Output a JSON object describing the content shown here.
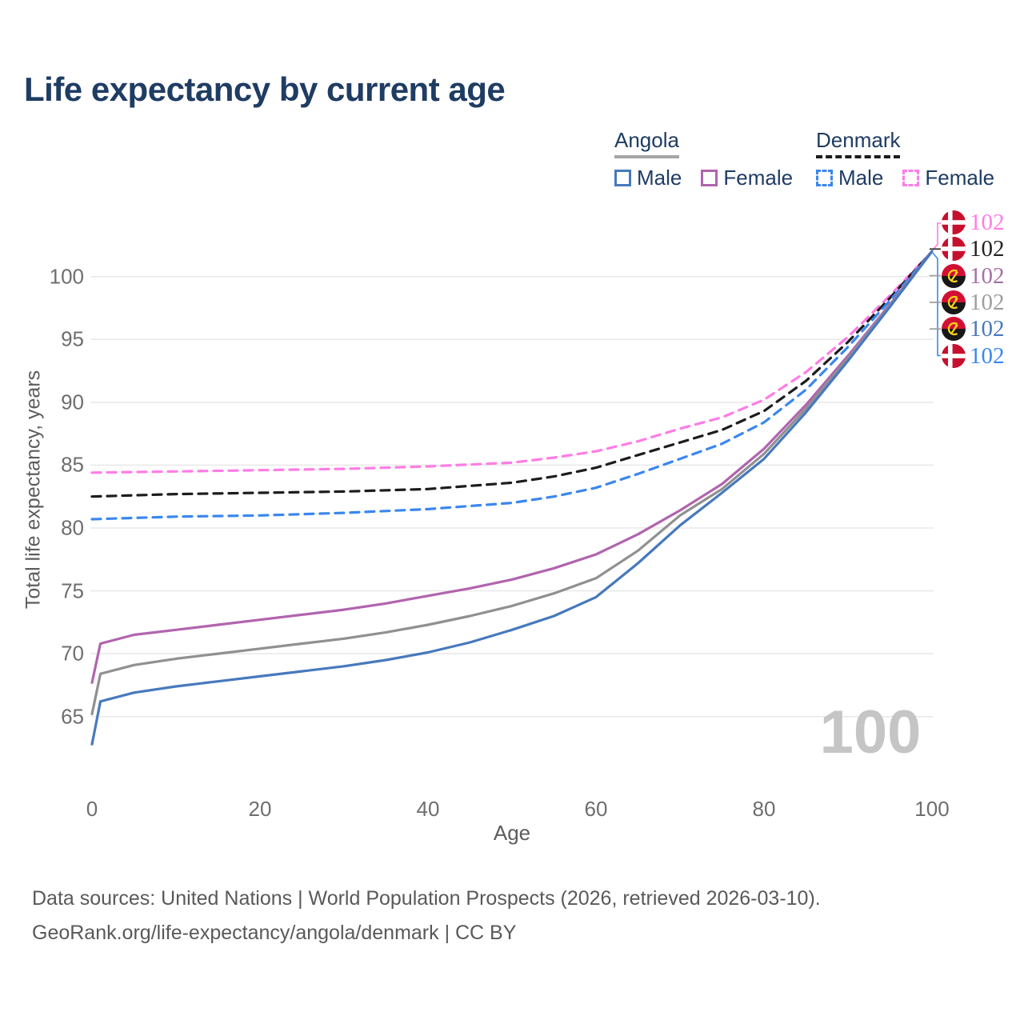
{
  "title": "Life expectancy by current age",
  "watermark": "100",
  "legend": {
    "groups": [
      {
        "label": "Angola",
        "line_style": "solid",
        "underline_color": "#a6a6a6",
        "items": [
          {
            "label": "Male",
            "color": "#4779bd"
          },
          {
            "label": "Female",
            "color": "#b164ae"
          }
        ]
      },
      {
        "label": "Denmark",
        "line_style": "dashed",
        "underline_color": "#1c1c1c",
        "items": [
          {
            "label": "Male",
            "color": "#3b87ee"
          },
          {
            "label": "Female",
            "color": "#ff7ce5"
          }
        ]
      }
    ]
  },
  "footer": {
    "line1": "Data sources: United Nations | World Population Prospects (2026, retrieved 2026-03-10).",
    "line2": "GeoRank.org/life-expectancy/angola/denmark | CC BY"
  },
  "chart_data": {
    "type": "line",
    "xlabel": "Age",
    "ylabel": "Total life expectancy, years",
    "x_ticks": [
      0,
      20,
      40,
      60,
      80,
      100
    ],
    "y_ticks": [
      65,
      70,
      75,
      80,
      85,
      90,
      95,
      100
    ],
    "xlim": [
      0,
      100
    ],
    "ylim": [
      61.5,
      103.5
    ],
    "grid": "horizontal",
    "gridline_color": "#e8e8e8",
    "series": [
      {
        "name": "Denmark Female",
        "country": "Denmark",
        "sex": "Female",
        "color": "#ff7ce5",
        "dash": true,
        "x": [
          0,
          10,
          20,
          30,
          40,
          50,
          55,
          60,
          65,
          70,
          75,
          80,
          85,
          90,
          95,
          100
        ],
        "y": [
          84.4,
          84.5,
          84.6,
          84.7,
          84.9,
          85.2,
          85.6,
          86.1,
          86.9,
          87.9,
          88.8,
          90.2,
          92.4,
          95.2,
          98.5,
          102
        ]
      },
      {
        "name": "Denmark Both sexes",
        "country": "Denmark",
        "sex": "Both",
        "color": "#1c1c1c",
        "dash": true,
        "x": [
          0,
          10,
          20,
          30,
          40,
          50,
          55,
          60,
          65,
          70,
          75,
          80,
          85,
          90,
          95,
          100
        ],
        "y": [
          82.5,
          82.7,
          82.8,
          82.9,
          83.1,
          83.6,
          84.1,
          84.8,
          85.8,
          86.8,
          87.8,
          89.3,
          91.7,
          94.8,
          98.3,
          102
        ]
      },
      {
        "name": "Denmark Male",
        "country": "Denmark",
        "sex": "Male",
        "color": "#3b87ee",
        "dash": true,
        "x": [
          0,
          10,
          20,
          30,
          40,
          50,
          55,
          60,
          65,
          70,
          75,
          80,
          85,
          90,
          95,
          100
        ],
        "y": [
          80.7,
          80.9,
          81.0,
          81.2,
          81.5,
          82.0,
          82.5,
          83.2,
          84.3,
          85.5,
          86.7,
          88.4,
          91.0,
          94.4,
          98.1,
          102
        ]
      },
      {
        "name": "Angola Female",
        "country": "Angola",
        "sex": "Female",
        "color": "#b164ae",
        "dash": false,
        "x": [
          0,
          1,
          5,
          10,
          15,
          20,
          25,
          30,
          35,
          40,
          45,
          50,
          55,
          60,
          65,
          70,
          75,
          80,
          85,
          90,
          95,
          100
        ],
        "y": [
          67.7,
          70.8,
          71.5,
          71.9,
          72.3,
          72.7,
          73.1,
          73.5,
          74.0,
          74.6,
          75.2,
          75.9,
          76.8,
          77.9,
          79.5,
          81.4,
          83.5,
          86.3,
          89.8,
          93.7,
          97.8,
          102
        ]
      },
      {
        "name": "Angola Both sexes",
        "country": "Angola",
        "sex": "Both",
        "color": "#909090",
        "dash": false,
        "x": [
          0,
          1,
          5,
          10,
          15,
          20,
          25,
          30,
          35,
          40,
          45,
          50,
          55,
          60,
          65,
          70,
          75,
          80,
          85,
          90,
          95,
          100
        ],
        "y": [
          65.2,
          68.4,
          69.1,
          69.6,
          70.0,
          70.4,
          70.8,
          71.2,
          71.7,
          72.3,
          73.0,
          73.8,
          74.8,
          76.0,
          78.2,
          81.0,
          83.1,
          85.9,
          89.5,
          93.5,
          97.7,
          102
        ]
      },
      {
        "name": "Angola Male",
        "country": "Angola",
        "sex": "Male",
        "color": "#4779bd",
        "dash": false,
        "x": [
          0,
          1,
          5,
          10,
          15,
          20,
          25,
          30,
          35,
          40,
          45,
          50,
          55,
          60,
          65,
          70,
          75,
          80,
          85,
          90,
          95,
          100
        ],
        "y": [
          62.8,
          66.2,
          66.9,
          67.4,
          67.8,
          68.2,
          68.6,
          69.0,
          69.5,
          70.1,
          70.9,
          71.9,
          73.0,
          74.5,
          77.2,
          80.2,
          82.8,
          85.5,
          89.2,
          93.3,
          97.6,
          102
        ]
      }
    ],
    "end_labels": [
      {
        "flag": "denmark",
        "value": "102",
        "color": "#ff7ce5",
        "series": "Denmark Female"
      },
      {
        "flag": "denmark",
        "value": "102",
        "color": "#222222",
        "series": "Denmark Both sexes"
      },
      {
        "flag": "angola",
        "value": "102",
        "color": "#a770a4",
        "series": "Angola Female"
      },
      {
        "flag": "angola",
        "value": "102",
        "color": "#9e9e9e",
        "series": "Angola Both sexes"
      },
      {
        "flag": "angola",
        "value": "102",
        "color": "#4779bd",
        "series": "Angola Male"
      },
      {
        "flag": "denmark",
        "value": "102",
        "color": "#3b87ee",
        "series": "Denmark Male"
      }
    ]
  }
}
